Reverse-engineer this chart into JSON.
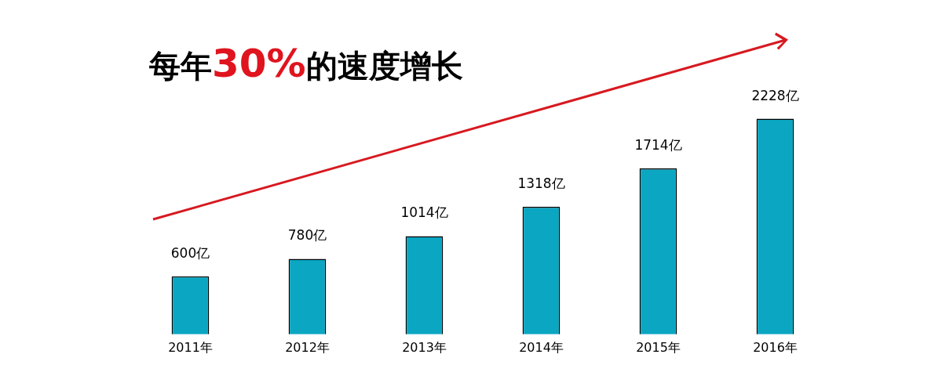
{
  "chart_data": {
    "type": "bar",
    "title": "每年30%的速度增长",
    "categories": [
      "2011年",
      "2012年",
      "2013年",
      "2014年",
      "2015年",
      "2016年"
    ],
    "values": [
      600,
      780,
      1014,
      1318,
      1714,
      2228
    ],
    "value_labels": [
      "600亿",
      "780亿",
      "1014亿",
      "1318亿",
      "1714亿",
      "2228亿"
    ],
    "color": "#0aa6c2",
    "tick_labels": "x"
  }
}
